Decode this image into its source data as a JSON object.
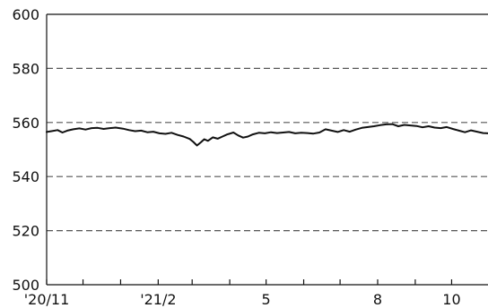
{
  "chart_data": {
    "type": "line",
    "title": "",
    "xlabel": "",
    "ylabel": "",
    "ylim": [
      500,
      600
    ],
    "yticks": [
      500,
      520,
      540,
      560,
      580,
      600
    ],
    "xlim": [
      "2020-11-01",
      "2021-10-31"
    ],
    "xtick_labels": [
      {
        "date": "2020-11-01",
        "label": "'20/11"
      },
      {
        "date": "2021-02-01",
        "label": "'21/2"
      },
      {
        "date": "2021-05-01",
        "label": "5"
      },
      {
        "date": "2021-08-01",
        "label": "8"
      },
      {
        "date": "2021-10-01",
        "label": "10"
      }
    ],
    "minor_xticks": [
      "2020-12-01",
      "2021-01-01",
      "2021-03-01",
      "2021-04-01",
      "2021-06-01",
      "2021-07-01",
      "2021-09-01"
    ],
    "grid": "horizontal dashed",
    "legend": "none",
    "line_color": "#111111",
    "grid_color": "#555555",
    "series": [
      {
        "x": [
          "2020-11-01",
          "2020-11-05",
          "2020-11-10",
          "2020-11-14",
          "2020-11-18",
          "2020-11-23",
          "2020-11-28",
          "2020-12-03",
          "2020-12-08",
          "2020-12-13",
          "2020-12-18",
          "2020-12-23",
          "2020-12-28",
          "2021-01-03",
          "2021-01-08",
          "2021-01-13",
          "2021-01-18",
          "2021-01-23",
          "2021-01-28",
          "2021-02-02",
          "2021-02-07",
          "2021-02-12",
          "2021-02-17",
          "2021-02-22",
          "2021-02-27",
          "2021-03-02",
          "2021-03-05",
          "2021-03-08",
          "2021-03-11",
          "2021-03-14",
          "2021-03-18",
          "2021-03-22",
          "2021-03-26",
          "2021-03-30",
          "2021-04-04",
          "2021-04-08",
          "2021-04-12",
          "2021-04-16",
          "2021-04-20",
          "2021-04-25",
          "2021-04-30",
          "2021-05-05",
          "2021-05-10",
          "2021-05-15",
          "2021-05-20",
          "2021-05-25",
          "2021-05-30",
          "2021-06-04",
          "2021-06-09",
          "2021-06-14",
          "2021-06-19",
          "2021-06-24",
          "2021-06-29",
          "2021-07-04",
          "2021-07-09",
          "2021-07-14",
          "2021-07-19",
          "2021-07-24",
          "2021-07-29",
          "2021-08-03",
          "2021-08-08",
          "2021-08-13",
          "2021-08-18",
          "2021-08-23",
          "2021-08-28",
          "2021-09-02",
          "2021-09-07",
          "2021-09-12",
          "2021-09-17",
          "2021-09-22",
          "2021-09-27",
          "2021-10-02",
          "2021-10-07",
          "2021-10-12",
          "2021-10-17",
          "2021-10-22",
          "2021-10-27",
          "2021-10-31"
        ],
        "y": [
          556.5,
          556.8,
          557.2,
          556.3,
          557.0,
          557.5,
          557.8,
          557.4,
          557.9,
          558.0,
          557.6,
          557.9,
          558.1,
          557.7,
          557.2,
          556.8,
          557.0,
          556.4,
          556.6,
          556.0,
          555.8,
          556.2,
          555.4,
          554.8,
          553.9,
          552.8,
          551.5,
          552.6,
          553.8,
          553.2,
          554.5,
          554.0,
          554.8,
          555.6,
          556.3,
          555.2,
          554.4,
          554.8,
          555.6,
          556.2,
          556.0,
          556.4,
          556.1,
          556.3,
          556.5,
          556.0,
          556.2,
          556.1,
          555.9,
          556.3,
          557.5,
          557.0,
          556.5,
          557.2,
          556.6,
          557.4,
          558.0,
          558.3,
          558.6,
          559.0,
          559.3,
          559.4,
          558.6,
          559.1,
          558.9,
          558.7,
          558.2,
          558.6,
          558.1,
          557.9,
          558.3,
          557.6,
          557.0,
          556.4,
          557.1,
          556.6,
          556.1,
          556.0
        ]
      }
    ]
  }
}
